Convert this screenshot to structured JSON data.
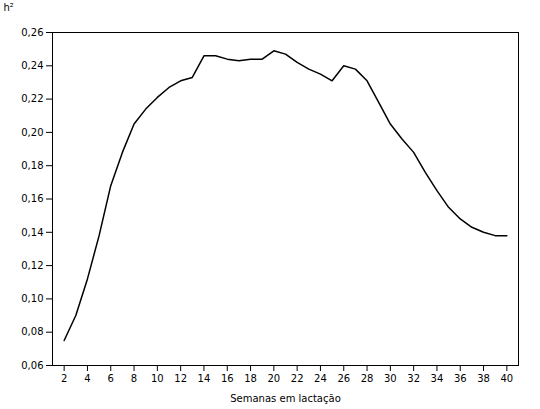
{
  "chart_data": {
    "type": "line",
    "x": [
      2,
      3,
      4,
      5,
      6,
      7,
      8,
      9,
      10,
      11,
      12,
      13,
      14,
      15,
      16,
      17,
      18,
      19,
      20,
      21,
      22,
      23,
      24,
      25,
      26,
      27,
      28,
      29,
      30,
      31,
      32,
      33,
      34,
      35,
      36,
      37,
      38,
      39,
      40
    ],
    "values": [
      0.075,
      0.09,
      0.112,
      0.138,
      0.168,
      0.188,
      0.205,
      0.214,
      0.221,
      0.227,
      0.231,
      0.233,
      0.246,
      0.246,
      0.244,
      0.243,
      0.244,
      0.244,
      0.249,
      0.247,
      0.242,
      0.238,
      0.235,
      0.231,
      0.24,
      0.238,
      0.231,
      0.218,
      0.205,
      0.196,
      0.188,
      0.176,
      0.165,
      0.155,
      0.148,
      0.143,
      0.14,
      0.138,
      0.138
    ],
    "xlabel": "Semanas em lactação",
    "ylabel": "h²",
    "xlim": [
      1,
      41
    ],
    "ylim": [
      0.06,
      0.26
    ],
    "xticks": [
      2,
      4,
      6,
      8,
      10,
      12,
      14,
      16,
      18,
      20,
      22,
      24,
      26,
      28,
      30,
      32,
      34,
      36,
      38,
      40
    ],
    "yticks": [
      {
        "value": 0.06,
        "label": "0,06"
      },
      {
        "value": 0.08,
        "label": "0,08"
      },
      {
        "value": 0.1,
        "label": "0,10"
      },
      {
        "value": 0.12,
        "label": "0,12"
      },
      {
        "value": 0.14,
        "label": "0,14"
      },
      {
        "value": 0.16,
        "label": "0,16"
      },
      {
        "value": 0.18,
        "label": "0,18"
      },
      {
        "value": 0.2,
        "label": "0,20"
      },
      {
        "value": 0.22,
        "label": "0,22"
      },
      {
        "value": 0.24,
        "label": "0,24"
      },
      {
        "value": 0.26,
        "label": "0,26"
      }
    ],
    "color": "#000000",
    "grid": false
  }
}
